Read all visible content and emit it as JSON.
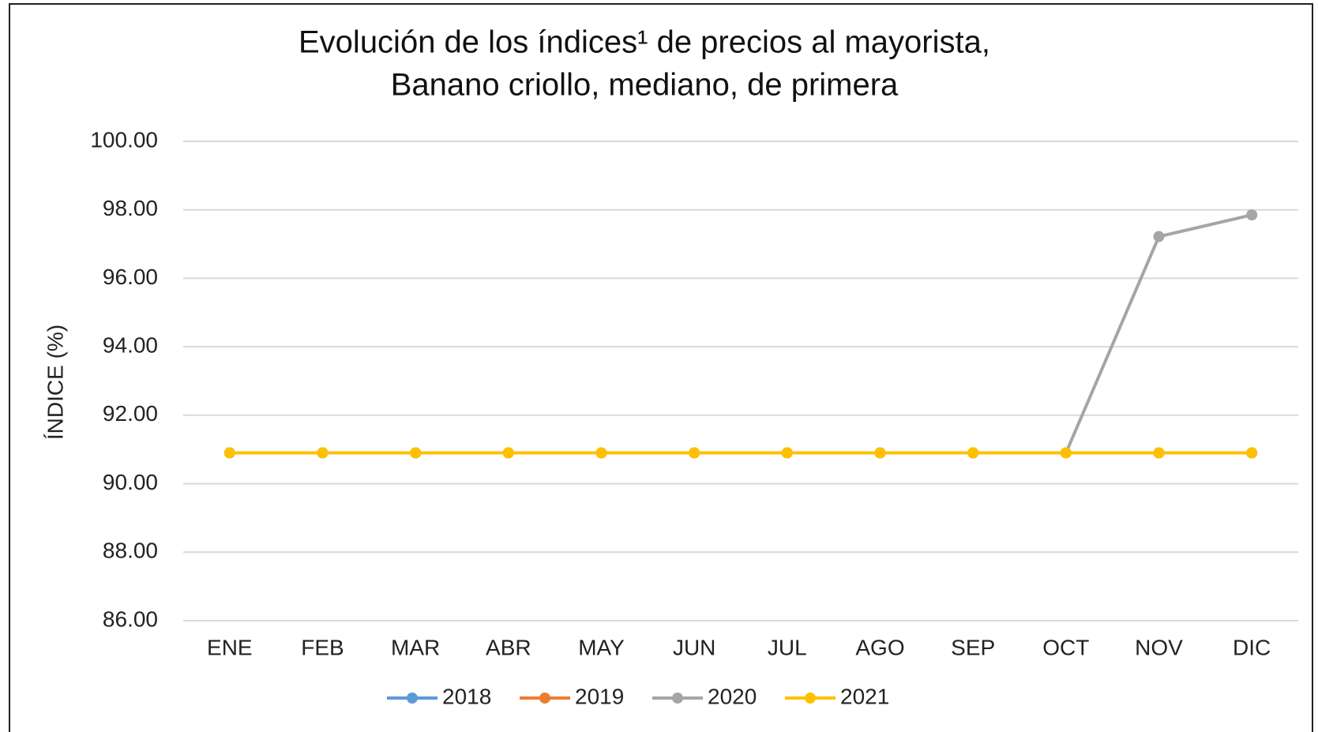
{
  "chart_data": {
    "type": "line",
    "title": [
      "Evolución de los índices¹ de precios al mayorista,",
      "Banano criollo, mediano, de primera"
    ],
    "y_label": "ÍNDICE (%)",
    "categories": [
      "ENE",
      "FEB",
      "MAR",
      "ABR",
      "MAY",
      "JUN",
      "JUL",
      "AGO",
      "SEP",
      "OCT",
      "NOV",
      "DIC"
    ],
    "series": [
      {
        "name": "2018",
        "color": "#5b9bd5",
        "values": [
          90.9,
          90.9,
          90.9,
          90.9,
          90.9,
          90.9,
          90.9,
          90.9,
          90.9,
          90.9,
          90.9,
          90.9
        ]
      },
      {
        "name": "2019",
        "color": "#ed7d31",
        "values": [
          90.9,
          90.9,
          90.9,
          90.9,
          90.9,
          90.9,
          90.9,
          90.9,
          90.9,
          90.9,
          90.9,
          90.9
        ]
      },
      {
        "name": "2020",
        "color": "#a5a5a5",
        "values": [
          90.9,
          90.9,
          90.9,
          90.9,
          90.9,
          90.9,
          90.9,
          90.9,
          90.9,
          90.9,
          97.22,
          97.85
        ]
      },
      {
        "name": "2021",
        "color": "#ffc000",
        "values": [
          90.9,
          90.9,
          90.9,
          90.9,
          90.9,
          90.9,
          90.9,
          90.9,
          90.9,
          90.9,
          90.9,
          90.9
        ]
      }
    ],
    "ylim": [
      86,
      100
    ],
    "yticks": [
      {
        "value": 86,
        "label": "86.00"
      },
      {
        "value": 88,
        "label": "88.00"
      },
      {
        "value": 90,
        "label": "90.00"
      },
      {
        "value": 92,
        "label": "92.00"
      },
      {
        "value": 94,
        "label": "94.00"
      },
      {
        "value": 96,
        "label": "96.00"
      },
      {
        "value": 98,
        "label": "98.00"
      },
      {
        "value": 100,
        "label": "100.00"
      }
    ],
    "grid": true,
    "legend": "bottom"
  }
}
